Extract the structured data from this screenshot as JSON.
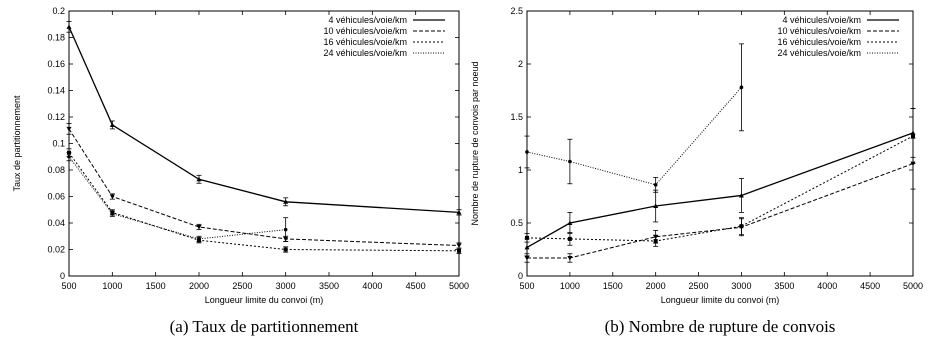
{
  "chart_data": [
    {
      "type": "line",
      "caption": "(a)  Taux de partitionnement",
      "xlabel": "Longueur limite du convoi (m)",
      "ylabel": "Taux de partitionnement",
      "xlim": [
        500,
        5000
      ],
      "ylim": [
        0,
        0.2
      ],
      "xticks": [
        500,
        1000,
        1500,
        2000,
        2500,
        3000,
        3500,
        4000,
        4500,
        5000
      ],
      "xtick_labels": [
        "500",
        "1000",
        "1500",
        "2000",
        "2500",
        "3000",
        "3500",
        "4000",
        "4500",
        "5000"
      ],
      "yticks": [
        0,
        0.02,
        0.04,
        0.06,
        0.08,
        0.1,
        0.12,
        0.14,
        0.16,
        0.18,
        0.2
      ],
      "ytick_labels": [
        "0",
        "0.02",
        "0.04",
        "0.06",
        "0.08",
        "0.1",
        "0.12",
        "0.14",
        "0.16",
        "0.18",
        "0.2"
      ],
      "legend_position": "top-right",
      "series": [
        {
          "name": "4 véhicules/voie/km",
          "style": "solid",
          "x": [
            500,
            1000,
            2000,
            3000,
            5000
          ],
          "y": [
            0.188,
            0.114,
            0.073,
            0.056,
            0.048
          ],
          "err": [
            0.004,
            0.003,
            0.003,
            0.003,
            0.002
          ]
        },
        {
          "name": "10 véhicules/voie/km",
          "style": "dashed",
          "x": [
            500,
            1000,
            2000,
            3000,
            5000
          ],
          "y": [
            0.111,
            0.06,
            0.037,
            0.028,
            0.023
          ],
          "err": [
            0.004,
            0.002,
            0.002,
            0.002,
            0.002
          ]
        },
        {
          "name": "16 véhicules/voie/km",
          "style": "dotted",
          "x": [
            500,
            1000,
            2000,
            3000,
            5000
          ],
          "y": [
            0.093,
            0.048,
            0.027,
            0.02,
            0.019
          ],
          "err": [
            0.003,
            0.002,
            0.002,
            0.002,
            0.002
          ]
        },
        {
          "name": "24 véhicules/voie/km",
          "style": "fine-dotted",
          "x": [
            500,
            1000,
            2000,
            3000
          ],
          "y": [
            0.09,
            0.047,
            0.028,
            0.035
          ],
          "err": [
            0.003,
            0.002,
            0.002,
            0.009
          ]
        }
      ]
    },
    {
      "type": "line",
      "caption": "(b)  Nombre de rupture de convois",
      "xlabel": "Longueur limite du convoi (m)",
      "ylabel": "Nombre de rupture de convois par noeud",
      "xlim": [
        500,
        5000
      ],
      "ylim": [
        0,
        2.5
      ],
      "xticks": [
        500,
        1000,
        1500,
        2000,
        2500,
        3000,
        3500,
        4000,
        4500,
        5000
      ],
      "xtick_labels": [
        "500",
        "1000",
        "1500",
        "2000",
        "2500",
        "3000",
        "3500",
        "4000",
        "4500",
        "5000"
      ],
      "yticks": [
        0,
        0.5,
        1,
        1.5,
        2,
        2.5
      ],
      "ytick_labels": [
        "0",
        "0.5",
        "1",
        "1.5",
        "2",
        "2.5"
      ],
      "legend_position": "top-right",
      "series": [
        {
          "name": "4 véhicules/voie/km",
          "style": "solid",
          "x": [
            500,
            1000,
            2000,
            3000,
            5000
          ],
          "y": [
            0.27,
            0.5,
            0.66,
            0.76,
            1.35
          ],
          "err": [
            0.08,
            0.1,
            0.15,
            0.16,
            0.23
          ]
        },
        {
          "name": "10 véhicules/voie/km",
          "style": "dashed",
          "x": [
            500,
            1000,
            2000,
            3000,
            5000
          ],
          "y": [
            0.17,
            0.17,
            0.37,
            0.46,
            1.06
          ],
          "err": [
            0.04,
            0.04,
            0.06,
            0.08,
            0.24
          ]
        },
        {
          "name": "16 véhicules/voie/km",
          "style": "dotted",
          "x": [
            500,
            1000,
            2000,
            3000,
            5000
          ],
          "y": [
            0.36,
            0.35,
            0.33,
            0.47,
            1.32
          ],
          "err": [
            0.04,
            0.06,
            0.05,
            0.08,
            0.26
          ]
        },
        {
          "name": "24 véhicules/voie/km",
          "style": "fine-dotted",
          "x": [
            500,
            1000,
            2000,
            3000
          ],
          "y": [
            1.17,
            1.08,
            0.86,
            1.78
          ],
          "err": [
            0.15,
            0.21,
            0.07,
            0.41
          ]
        }
      ]
    }
  ]
}
